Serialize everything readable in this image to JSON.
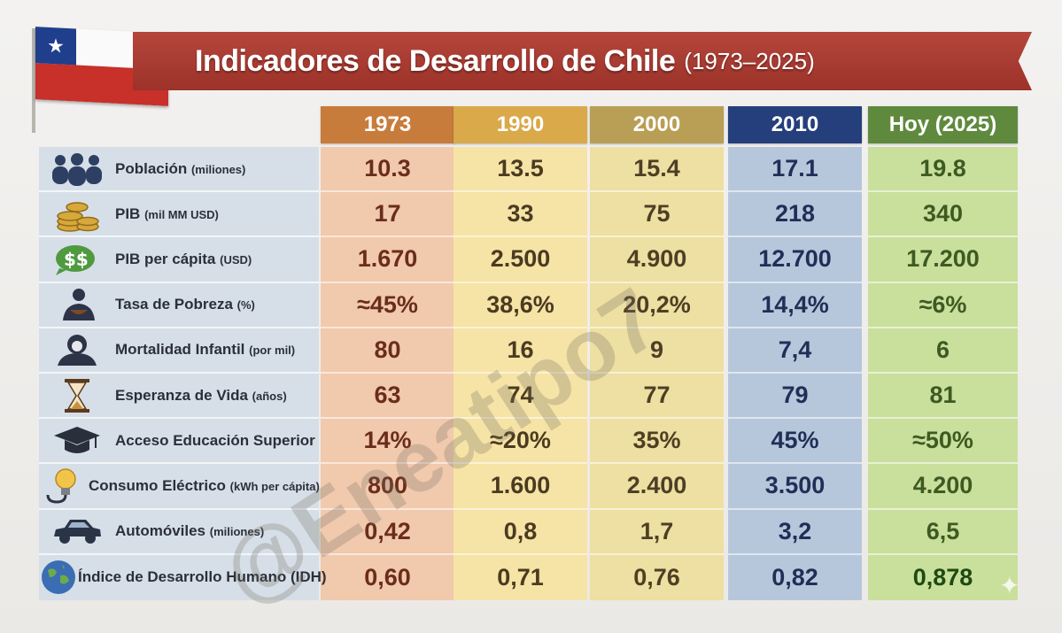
{
  "header": {
    "title": "Indicadores de Desarrollo de Chile",
    "subtitle": "(1973–2025)"
  },
  "flag": {
    "star": "★"
  },
  "columns": [
    {
      "label": "1973"
    },
    {
      "label": "1990"
    },
    {
      "label": "2000"
    },
    {
      "label": "2010"
    },
    {
      "label": "Hoy (2025)"
    }
  ],
  "rows": [
    {
      "icon": "people-icon",
      "label": "Población",
      "unit": "(miliones)",
      "values": [
        "10.3",
        "13.5",
        "15.4",
        "17.1",
        "19.8"
      ]
    },
    {
      "icon": "coins-icon",
      "label": "PIB",
      "unit": "(mil MM USD)",
      "values": [
        "17",
        "33",
        "75",
        "218",
        "340"
      ]
    },
    {
      "icon": "money-bubble-icon",
      "label": "PIB per cápita",
      "unit": "(USD)",
      "values": [
        "1.670",
        "2.500",
        "4.900",
        "12.700",
        "17.200"
      ]
    },
    {
      "icon": "poverty-bowl-icon",
      "label": "Tasa de Pobreza",
      "unit": "(%)",
      "values": [
        "≈45%",
        "38,6%",
        "20,2%",
        "14,4%",
        "≈6%"
      ]
    },
    {
      "icon": "baby-icon",
      "label": "Mortalidad Infantil",
      "unit": "(por mil)",
      "values": [
        "80",
        "16",
        "9",
        "7,4",
        "6"
      ]
    },
    {
      "icon": "hourglass-icon",
      "label": "Esperanza de Vida",
      "unit": "(años)",
      "values": [
        "63",
        "74",
        "77",
        "79",
        "81"
      ]
    },
    {
      "icon": "graduation-cap-icon",
      "label": "Acceso Educación Superior",
      "unit": "",
      "values": [
        "14%",
        "≈20%",
        "35%",
        "45%",
        "≈50%"
      ]
    },
    {
      "icon": "lightbulb-icon",
      "label": "Consumo Eléctrico",
      "unit": "(kWh per cápita)",
      "values": [
        "800",
        "1.600",
        "2.400",
        "3.500",
        "4.200"
      ]
    },
    {
      "icon": "car-icon",
      "label": "Automóviles",
      "unit": "(miliones)",
      "values": [
        "0,42",
        "0,8",
        "1,7",
        "3,2",
        "6,5"
      ]
    },
    {
      "icon": "globe-icon",
      "label": "Índice de Desarrollo Humano (IDH)",
      "unit": "",
      "values": [
        "0,60",
        "0,71",
        "0,76",
        "0,82",
        "0,878"
      ]
    }
  ],
  "watermark": "@Eneatipo7",
  "colors": {
    "banner": "#a93b31",
    "c1973": "#c87c3c",
    "c1990": "#d9a94a",
    "c2000": "#b99e55",
    "c2010": "#253f7c",
    "c2025": "#5f8a3e"
  }
}
